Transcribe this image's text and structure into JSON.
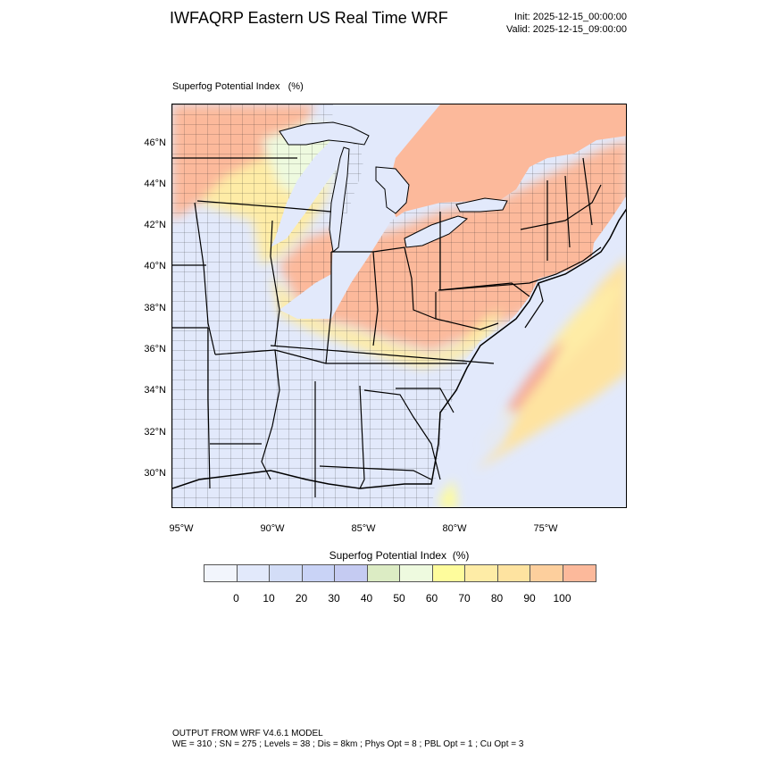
{
  "header": {
    "title": "IWFAQRP Eastern US Real Time WRF",
    "init": "Init: 2025-12-15_00:00:00",
    "valid": "Valid: 2025-12-15_09:00:00"
  },
  "plot": {
    "label": "Superfog Potential Index   (%)"
  },
  "axes": {
    "lat_labels": [
      "46°N",
      "44°N",
      "42°N",
      "40°N",
      "38°N",
      "36°N",
      "34°N",
      "32°N",
      "30°N"
    ],
    "lon_labels": [
      "95°W",
      "90°W",
      "85°W",
      "80°W",
      "75°W"
    ]
  },
  "colorbar": {
    "title": "Superfog Potential Index  (%)",
    "ticks": [
      "0",
      "10",
      "20",
      "30",
      "40",
      "50",
      "60",
      "70",
      "80",
      "90",
      "100"
    ],
    "colors": [
      "#f2f5fc",
      "#e2e9fb",
      "#d3ddf7",
      "#c9d3f6",
      "#c5cbf2",
      "#dcecc4",
      "#eefadf",
      "#fefc9c",
      "#feeca6",
      "#fee3a0",
      "#fdcf9d",
      "#fcb99b"
    ]
  },
  "palette": {
    "ocean_blue": "#e2e9fb",
    "high_red": "#fcb99b",
    "mid_yellow": "#feeca6",
    "pink": "#f6a796"
  },
  "footer": {
    "line1": "OUTPUT FROM WRF V4.6.1 MODEL",
    "line2": "WE = 310 ; SN = 275 ; Levels = 38 ; Dis = 8km ; Phys Opt = 8 ; PBL Opt = 1 ; Cu Opt = 3"
  }
}
